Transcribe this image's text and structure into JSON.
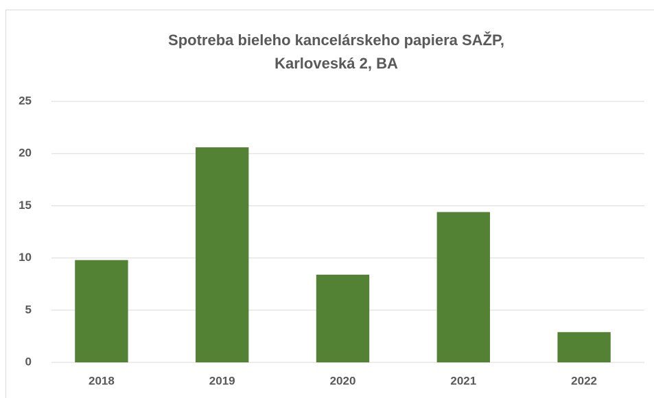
{
  "chart_data": {
    "type": "bar",
    "title": [
      "Spotreba bieleho kancelárskeho papiera  SAŽP,",
      "Karloveská 2, BA"
    ],
    "categories": [
      "2018",
      "2019",
      "2020",
      "2021",
      "2022"
    ],
    "values": [
      9.8,
      20.6,
      8.4,
      14.4,
      2.9
    ],
    "color": "#548235",
    "ylim": [
      0,
      25
    ],
    "yticks": [
      0,
      5,
      10,
      15,
      20,
      25
    ],
    "grid": true
  }
}
